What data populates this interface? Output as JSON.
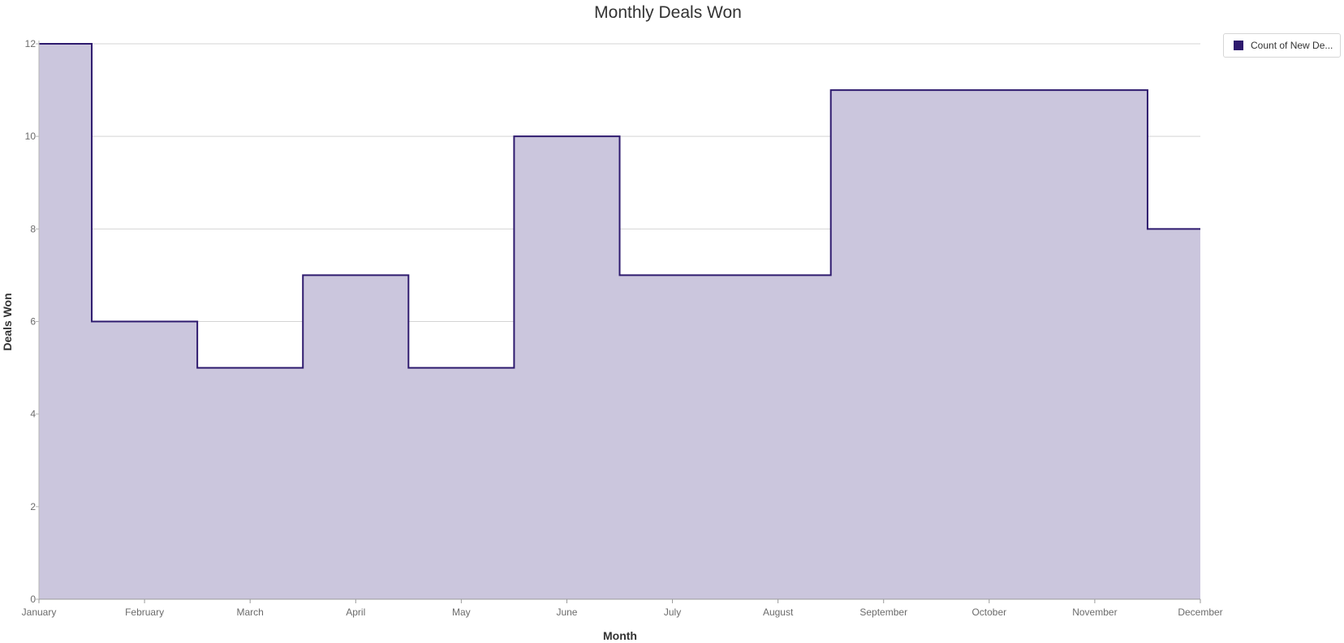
{
  "chart_data": {
    "type": "area",
    "step": "middle",
    "title": "Monthly Deals Won",
    "xlabel": "Month",
    "ylabel": "Deals Won",
    "categories": [
      "January",
      "February",
      "March",
      "April",
      "May",
      "June",
      "July",
      "August",
      "September",
      "October",
      "November",
      "December"
    ],
    "series": [
      {
        "name": "Count of New De...",
        "values": [
          12,
          6,
          5,
          7,
          5,
          10,
          7,
          7,
          11,
          11,
          11,
          8
        ],
        "color": "#2e1a6e",
        "fill": "#cbc6dd"
      }
    ],
    "ylim": [
      0,
      12
    ],
    "yticks": [
      0,
      2,
      4,
      6,
      8,
      10,
      12
    ],
    "grid": true,
    "legend_position": "top-right"
  }
}
